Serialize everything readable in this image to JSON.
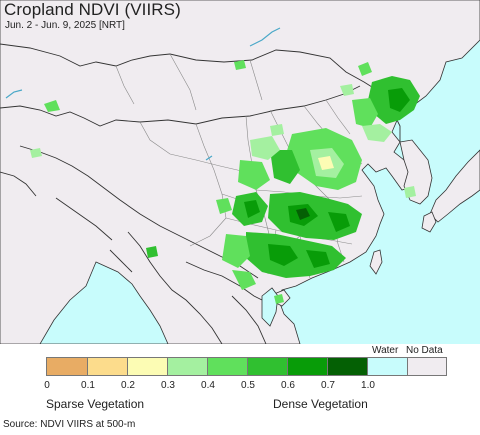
{
  "header": {
    "title": "Cropland NDVI (VIIRS)",
    "subtitle": "Jun. 2 - Jun. 9, 2025 [NRT]"
  },
  "map": {
    "colors": {
      "land": "#f0ecf0",
      "ocean": "#c8fcfc",
      "border": "#333333",
      "province": "#8a8a8a",
      "water_line": "#4aa8c8"
    }
  },
  "legend": {
    "water_label": "Water",
    "nodata_label": "No Data",
    "ticks": [
      "0",
      "0.1",
      "0.2",
      "0.3",
      "0.4",
      "0.5",
      "0.6",
      "0.7",
      "1.0"
    ],
    "colors": [
      "#e8ac64",
      "#fcdc8c",
      "#fcfcb4",
      "#a4f0a0",
      "#60e05c",
      "#30c030",
      "#089c08",
      "#046004",
      "#c8fcfc",
      "#f0ecf0"
    ],
    "sparse_label": "Sparse Vegetation",
    "dense_label": "Dense Vegetation"
  },
  "footer": {
    "source": "Source: NDVI VIIRS at 500-m"
  }
}
